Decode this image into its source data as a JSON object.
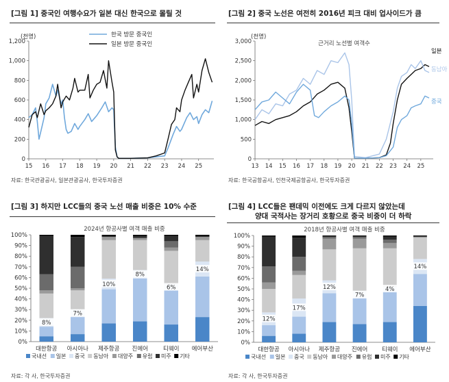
{
  "chart_data": [
    {
      "type": "line",
      "title": "[그림 1] 중국인 여행수요가 일본 대신 한국으로 몰릴 것",
      "unit": "(천명)",
      "xlabel": "",
      "ylabel": "천명",
      "xticks": [
        "15",
        "16",
        "17",
        "18",
        "19",
        "20",
        "21",
        "22",
        "23",
        "24",
        "25"
      ],
      "yticks": [
        "0",
        "200",
        "400",
        "600",
        "800",
        "1,000",
        "1,200"
      ],
      "xlim": [
        2015,
        2025.9
      ],
      "ylim": [
        0,
        1200
      ],
      "legend_position": "top",
      "series": [
        {
          "name": "한국 방문 중국인",
          "color": "#6fa8dc",
          "x": [
            2015.0,
            2015.2,
            2015.4,
            2015.5,
            2015.6,
            2015.7,
            2015.9,
            2016.0,
            2016.2,
            2016.4,
            2016.6,
            2016.7,
            2016.9,
            2017.0,
            2017.1,
            2017.2,
            2017.3,
            2017.5,
            2017.7,
            2017.9,
            2018.0,
            2018.3,
            2018.5,
            2018.7,
            2018.9,
            2019.0,
            2019.3,
            2019.5,
            2019.7,
            2019.9,
            2020.0,
            2020.1,
            2020.2,
            2020.3,
            2021.0,
            2022.0,
            2022.5,
            2023.0,
            2023.2,
            2023.5,
            2023.7,
            2023.9,
            2024.0,
            2024.3,
            2024.5,
            2024.7,
            2024.9,
            2025.0,
            2025.2,
            2025.4,
            2025.6,
            2025.8
          ],
          "y": [
            420,
            450,
            520,
            380,
            200,
            270,
            420,
            560,
            620,
            760,
            640,
            700,
            560,
            600,
            420,
            300,
            260,
            280,
            360,
            300,
            330,
            400,
            460,
            380,
            420,
            440,
            520,
            580,
            480,
            520,
            500,
            120,
            20,
            5,
            5,
            10,
            20,
            30,
            110,
            250,
            330,
            280,
            300,
            420,
            470,
            400,
            430,
            360,
            450,
            500,
            470,
            590
          ]
        },
        {
          "name": "일본 방문 중국인",
          "color": "#111111",
          "x": [
            2015.0,
            2015.2,
            2015.4,
            2015.5,
            2015.7,
            2015.9,
            2016.0,
            2016.2,
            2016.4,
            2016.6,
            2016.7,
            2016.9,
            2017.0,
            2017.2,
            2017.4,
            2017.6,
            2017.7,
            2017.9,
            2018.0,
            2018.3,
            2018.5,
            2018.6,
            2018.8,
            2019.0,
            2019.2,
            2019.4,
            2019.6,
            2019.7,
            2019.9,
            2020.0,
            2020.1,
            2020.2,
            2020.3,
            2021.0,
            2022.0,
            2022.5,
            2023.0,
            2023.2,
            2023.4,
            2023.6,
            2023.7,
            2023.9,
            2024.0,
            2024.2,
            2024.4,
            2024.6,
            2024.7,
            2024.9,
            2025.0,
            2025.2,
            2025.4,
            2025.6,
            2025.8
          ],
          "y": [
            320,
            450,
            480,
            420,
            560,
            450,
            490,
            520,
            560,
            640,
            760,
            520,
            580,
            640,
            600,
            720,
            820,
            680,
            700,
            700,
            860,
            620,
            700,
            760,
            780,
            900,
            720,
            1000,
            780,
            680,
            90,
            20,
            5,
            5,
            10,
            30,
            60,
            200,
            350,
            400,
            520,
            480,
            600,
            700,
            780,
            860,
            620,
            760,
            680,
            900,
            1020,
            880,
            780
          ]
        }
      ],
      "source": "자료: 한국관광공사, 일본관광공사, 한국투자증권"
    },
    {
      "type": "line",
      "title": "[그림 2] 중국 노선은 여전히 2016년 피크 대비 업사이드가 큼",
      "subtitle": "근거리 노선별 여객수",
      "unit": "(천명)",
      "xticks": [
        "13",
        "14",
        "15",
        "16",
        "17",
        "18",
        "19",
        "20",
        "21",
        "22",
        "23",
        "24",
        "25"
      ],
      "yticks": [
        "0",
        "500",
        "1,000",
        "1,500",
        "2,000",
        "2,500",
        "3,000"
      ],
      "xlim": [
        2013,
        2025.9
      ],
      "ylim": [
        0,
        3000
      ],
      "series": [
        {
          "name": "일본",
          "color": "#111111",
          "x": [
            2013.0,
            2013.5,
            2014.0,
            2014.5,
            2015.0,
            2015.5,
            2016.0,
            2016.5,
            2017.0,
            2017.5,
            2018.0,
            2018.5,
            2019.0,
            2019.5,
            2019.8,
            2020.0,
            2020.2,
            2021.0,
            2022.0,
            2022.5,
            2022.8,
            2023.0,
            2023.3,
            2023.6,
            2024.0,
            2024.3,
            2024.6,
            2025.0,
            2025.3,
            2025.6
          ],
          "y": [
            850,
            950,
            900,
            1000,
            1050,
            1100,
            1200,
            1350,
            1450,
            1650,
            1750,
            1900,
            1950,
            1800,
            1300,
            700,
            20,
            15,
            30,
            100,
            400,
            900,
            1500,
            1900,
            2050,
            2150,
            2250,
            2300,
            2400,
            2350
          ]
        },
        {
          "name": "동남아",
          "color": "#a9c4e8",
          "x": [
            2013.0,
            2013.5,
            2014.0,
            2014.5,
            2015.0,
            2015.5,
            2016.0,
            2016.5,
            2017.0,
            2017.5,
            2018.0,
            2018.5,
            2019.0,
            2019.5,
            2019.8,
            2020.0,
            2020.2,
            2021.0,
            2022.0,
            2022.5,
            2023.0,
            2023.3,
            2023.6,
            2024.0,
            2024.3,
            2024.6,
            2025.0,
            2025.3,
            2025.6
          ],
          "y": [
            1000,
            1250,
            1150,
            1400,
            1350,
            1650,
            1750,
            2050,
            1900,
            2250,
            2150,
            2500,
            2450,
            2700,
            2400,
            1500,
            60,
            30,
            120,
            500,
            1200,
            1800,
            2100,
            2200,
            2400,
            2300,
            2500,
            2250,
            2200
          ]
        },
        {
          "name": "중국",
          "color": "#6fa8dc",
          "x": [
            2013.0,
            2013.5,
            2014.0,
            2014.5,
            2015.0,
            2015.5,
            2016.0,
            2016.5,
            2017.0,
            2017.3,
            2017.6,
            2018.0,
            2018.5,
            2019.0,
            2019.5,
            2019.8,
            2020.0,
            2020.2,
            2021.0,
            2022.0,
            2022.5,
            2023.0,
            2023.3,
            2023.6,
            2024.0,
            2024.3,
            2024.6,
            2025.0,
            2025.3,
            2025.6
          ],
          "y": [
            1250,
            1450,
            1500,
            1700,
            1550,
            1400,
            1700,
            1900,
            1750,
            1100,
            1050,
            1200,
            1350,
            1450,
            1600,
            1500,
            900,
            20,
            15,
            30,
            80,
            300,
            800,
            1000,
            1100,
            1300,
            1350,
            1400,
            1600,
            1550
          ]
        }
      ],
      "source": "자료: 한국공항공사, 인천국제공항공사, 한국투자증권"
    },
    {
      "type": "bar",
      "stacked": true,
      "title": "[그림 3] 하지만 LCC들의 중국 노선 매출 비중은 10% 수준",
      "subtitle": "2024년 항공사별 여객 매출 비중",
      "categories": [
        "대한항공",
        "아시아나",
        "제주항공",
        "진에어",
        "티웨이",
        "에어부산"
      ],
      "yticks": [
        "0%",
        "10%",
        "20%",
        "30%",
        "40%",
        "50%",
        "60%",
        "70%",
        "80%",
        "90%",
        "100%"
      ],
      "ylim": [
        0,
        100
      ],
      "series": [
        {
          "name": "국내선",
          "color": "#4a86c8",
          "values": [
            5,
            7,
            17,
            19,
            16,
            23
          ]
        },
        {
          "name": "일본",
          "color": "#a9c4e8",
          "values": [
            9,
            16,
            32,
            40,
            32,
            38
          ]
        },
        {
          "name": "중국",
          "color": "#dbe6f4",
          "values": [
            8,
            7,
            10,
            8,
            6,
            14
          ]
        },
        {
          "name": "동남아",
          "color": "#cccccc",
          "values": [
            23,
            18,
            36,
            28,
            31,
            20
          ]
        },
        {
          "name": "대양주",
          "color": "#9a9a9a",
          "values": [
            3,
            2,
            3,
            2,
            3,
            3
          ]
        },
        {
          "name": "유럽",
          "color": "#6b6b6b",
          "values": [
            15,
            20,
            0,
            0,
            6,
            0
          ]
        },
        {
          "name": "미주",
          "color": "#2f2f2f",
          "values": [
            36,
            28,
            1,
            2,
            5,
            1
          ]
        },
        {
          "name": "기타",
          "color": "#000000",
          "values": [
            1,
            2,
            1,
            1,
            1,
            1
          ]
        }
      ],
      "data_labels": [
        "8%",
        "7%",
        "10%",
        "8%",
        "6%",
        "14%"
      ],
      "source": "자료: 각 사, 한국투자증권"
    },
    {
      "type": "bar",
      "stacked": true,
      "title": "[그림 4] LCC들은 팬데믹 이전에도 크게 다르지 않았는데",
      "title2": "양대 국적사는 장거리 호황으로 중국 비중이 더 하락",
      "subtitle": "2018년 항공사별 여객 매출 비중",
      "categories": [
        "대한항공",
        "아시아나",
        "제주항공",
        "진에어",
        "티웨이",
        "에어부산"
      ],
      "yticks": [
        "0%",
        "10%",
        "20%",
        "30%",
        "40%",
        "50%",
        "60%",
        "70%",
        "80%",
        "90%",
        "100%"
      ],
      "ylim": [
        0,
        100
      ],
      "series": [
        {
          "name": "국내선",
          "color": "#4a86c8",
          "values": [
            6,
            8,
            19,
            17,
            19,
            34
          ]
        },
        {
          "name": "일본",
          "color": "#a9c4e8",
          "values": [
            10,
            16,
            27,
            24,
            29,
            30
          ]
        },
        {
          "name": "중국",
          "color": "#dbe6f4",
          "values": [
            12,
            17,
            12,
            7,
            4,
            14
          ]
        },
        {
          "name": "동남아",
          "color": "#cccccc",
          "values": [
            22,
            22,
            29,
            40,
            36,
            20
          ]
        },
        {
          "name": "대양주",
          "color": "#9a9a9a",
          "values": [
            6,
            4,
            10,
            9,
            5,
            1
          ]
        },
        {
          "name": "유럽",
          "color": "#6b6b6b",
          "values": [
            15,
            13,
            2,
            2,
            3,
            0
          ]
        },
        {
          "name": "미주",
          "color": "#2f2f2f",
          "values": [
            28,
            18,
            0,
            0,
            3,
            0
          ]
        },
        {
          "name": "기타",
          "color": "#000000",
          "values": [
            1,
            2,
            1,
            1,
            1,
            1
          ]
        }
      ],
      "data_labels": [
        "12%",
        "17%",
        "12%",
        "7%",
        "4%",
        "14%"
      ],
      "source": "자료: 각 사, 한국투자증권"
    }
  ]
}
